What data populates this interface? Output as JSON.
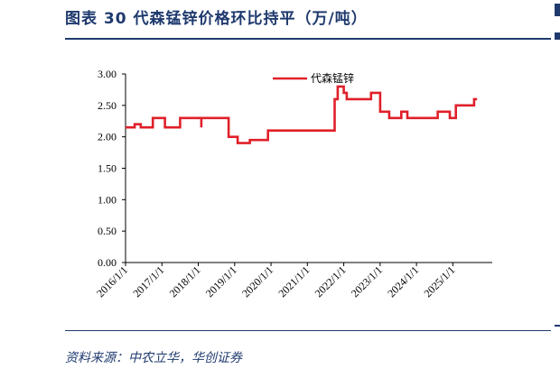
{
  "header": {
    "title": "图表 30   代森锰锌价格环比持平（万/吨）"
  },
  "footer": {
    "source": "资料来源：中农立华，华创证券"
  },
  "chart_data": {
    "type": "line",
    "title": "代森锰锌价格环比持平（万/吨）",
    "xlabel": "",
    "ylabel": "",
    "ylim": [
      0,
      3
    ],
    "yticks": [
      "0.00",
      "0.50",
      "1.00",
      "1.50",
      "2.00",
      "2.50",
      "3.00"
    ],
    "xlim": [
      "2016/1/1",
      "2026/2/1"
    ],
    "xticks": [
      "2016/1/1",
      "2017/1/1",
      "2018/1/1",
      "2019/1/1",
      "2020/1/1",
      "2021/1/1",
      "2022/1/1",
      "2023/1/1",
      "2024/1/1",
      "2025/1/1"
    ],
    "grid": false,
    "legend": "top-center",
    "series": [
      {
        "name": "代森锰锌",
        "color": "#e0202a",
        "points": [
          [
            "2016/1/1",
            2.15
          ],
          [
            "2016/4/1",
            2.15
          ],
          [
            "2016/4/1",
            2.2
          ],
          [
            "2016/6/1",
            2.2
          ],
          [
            "2016/6/1",
            2.15
          ],
          [
            "2016/10/1",
            2.15
          ],
          [
            "2016/10/1",
            2.3
          ],
          [
            "2017/2/1",
            2.3
          ],
          [
            "2017/2/1",
            2.15
          ],
          [
            "2017/7/1",
            2.15
          ],
          [
            "2017/7/1",
            2.3
          ],
          [
            "2018/2/1",
            2.3
          ],
          [
            "2018/2/1",
            2.15
          ],
          [
            "2018/2/1",
            2.3
          ],
          [
            "2018/11/1",
            2.3
          ],
          [
            "2018/11/1",
            2.0
          ],
          [
            "2019/2/1",
            2.0
          ],
          [
            "2019/2/1",
            1.9
          ],
          [
            "2019/6/1",
            1.9
          ],
          [
            "2019/6/1",
            1.95
          ],
          [
            "2019/12/1",
            1.95
          ],
          [
            "2019/12/1",
            2.1
          ],
          [
            "2021/10/1",
            2.1
          ],
          [
            "2021/10/1",
            2.6
          ],
          [
            "2021/11/1",
            2.6
          ],
          [
            "2021/11/1",
            2.8
          ],
          [
            "2022/1/1",
            2.8
          ],
          [
            "2022/1/1",
            2.7
          ],
          [
            "2022/2/1",
            2.7
          ],
          [
            "2022/2/1",
            2.6
          ],
          [
            "2022/10/1",
            2.6
          ],
          [
            "2022/10/1",
            2.7
          ],
          [
            "2023/1/1",
            2.7
          ],
          [
            "2023/1/1",
            2.4
          ],
          [
            "2023/4/1",
            2.4
          ],
          [
            "2023/4/1",
            2.3
          ],
          [
            "2023/8/1",
            2.3
          ],
          [
            "2023/8/1",
            2.4
          ],
          [
            "2023/10/1",
            2.4
          ],
          [
            "2023/10/1",
            2.3
          ],
          [
            "2024/8/1",
            2.3
          ],
          [
            "2024/8/1",
            2.4
          ],
          [
            "2024/12/1",
            2.4
          ],
          [
            "2024/12/1",
            2.3
          ],
          [
            "2025/2/1",
            2.3
          ],
          [
            "2025/2/1",
            2.5
          ],
          [
            "2025/8/1",
            2.5
          ],
          [
            "2025/8/1",
            2.6
          ],
          [
            "2025/9/1",
            2.6
          ]
        ]
      }
    ]
  }
}
